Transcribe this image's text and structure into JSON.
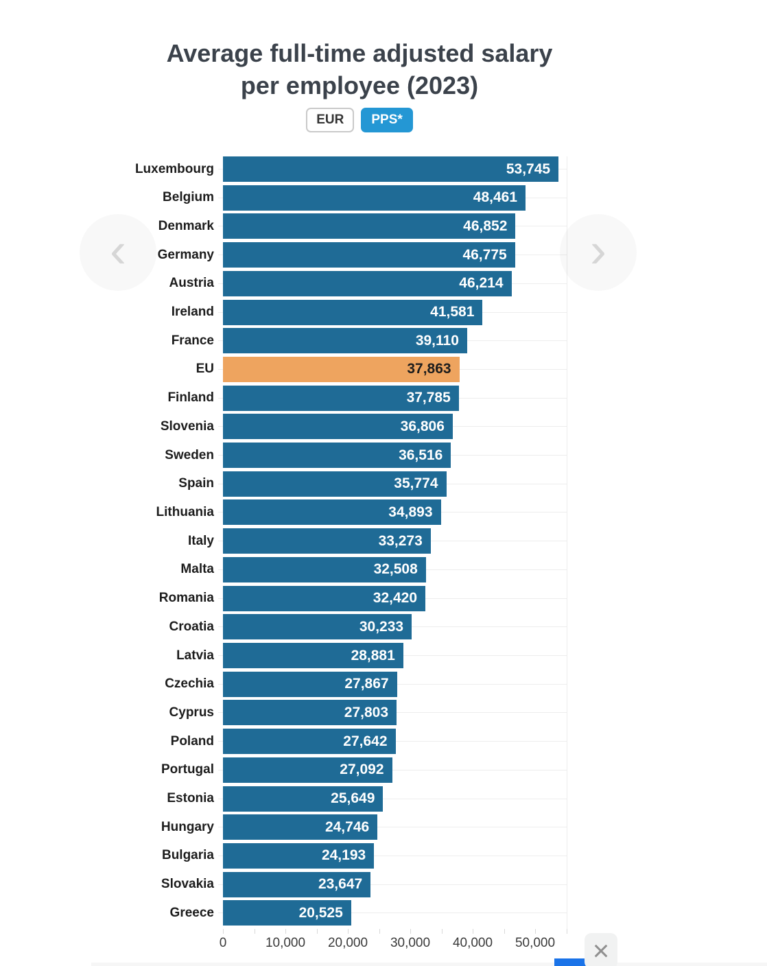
{
  "title": {
    "line1": "Average full-time adjusted salary",
    "line2": "per employee (2023)"
  },
  "toggles": {
    "eur_label": "EUR",
    "pps_label": "PPS*",
    "selected": "PPS*"
  },
  "icons": {
    "close": "×",
    "prev_arrow": "‹",
    "next_arrow": "›"
  },
  "chart_data": {
    "type": "bar",
    "orientation": "horizontal",
    "title": "Average full-time adjusted salary per employee (2023)",
    "unit_selected": "PPS*",
    "categories": [
      "Luxembourg",
      "Belgium",
      "Denmark",
      "Germany",
      "Austria",
      "Ireland",
      "France",
      "EU",
      "Finland",
      "Slovenia",
      "Sweden",
      "Spain",
      "Lithuania",
      "Italy",
      "Malta",
      "Romania",
      "Croatia",
      "Latvia",
      "Czechia",
      "Cyprus",
      "Poland",
      "Portugal",
      "Estonia",
      "Hungary",
      "Bulgaria",
      "Slovakia",
      "Greece"
    ],
    "values": [
      53745,
      48461,
      46852,
      46775,
      46214,
      41581,
      39110,
      37863,
      37785,
      36806,
      36516,
      35774,
      34893,
      33273,
      32508,
      32420,
      30233,
      28881,
      27867,
      27803,
      27642,
      27092,
      25649,
      24746,
      24193,
      23647,
      20525
    ],
    "value_labels": [
      "53,745",
      "48,461",
      "46,852",
      "46,775",
      "46,214",
      "41,581",
      "39,110",
      "37,863",
      "37,785",
      "36,806",
      "36,516",
      "35,774",
      "34,893",
      "33,273",
      "32,508",
      "32,420",
      "30,233",
      "28,881",
      "27,867",
      "27,803",
      "27,642",
      "27,092",
      "25,649",
      "24,746",
      "24,193",
      "23,647",
      "20,525"
    ],
    "highlight_category": "EU",
    "xlim": [
      0,
      55000
    ],
    "x_ticks": [
      {
        "value": 0,
        "label": "0"
      },
      {
        "value": 10000,
        "label": "10,000"
      },
      {
        "value": 20000,
        "label": "20,000"
      },
      {
        "value": 30000,
        "label": "30,000"
      },
      {
        "value": 40000,
        "label": "40,000"
      },
      {
        "value": 50000,
        "label": "50,000"
      }
    ],
    "minor_tick_step": 5000,
    "grid": "row-hairlines",
    "legend": "none",
    "colors": {
      "bar": "#1f6b96",
      "highlight_bar": "#eea45f",
      "value_text": "#ffffff",
      "highlight_value_text": "#1d1d1d"
    }
  }
}
